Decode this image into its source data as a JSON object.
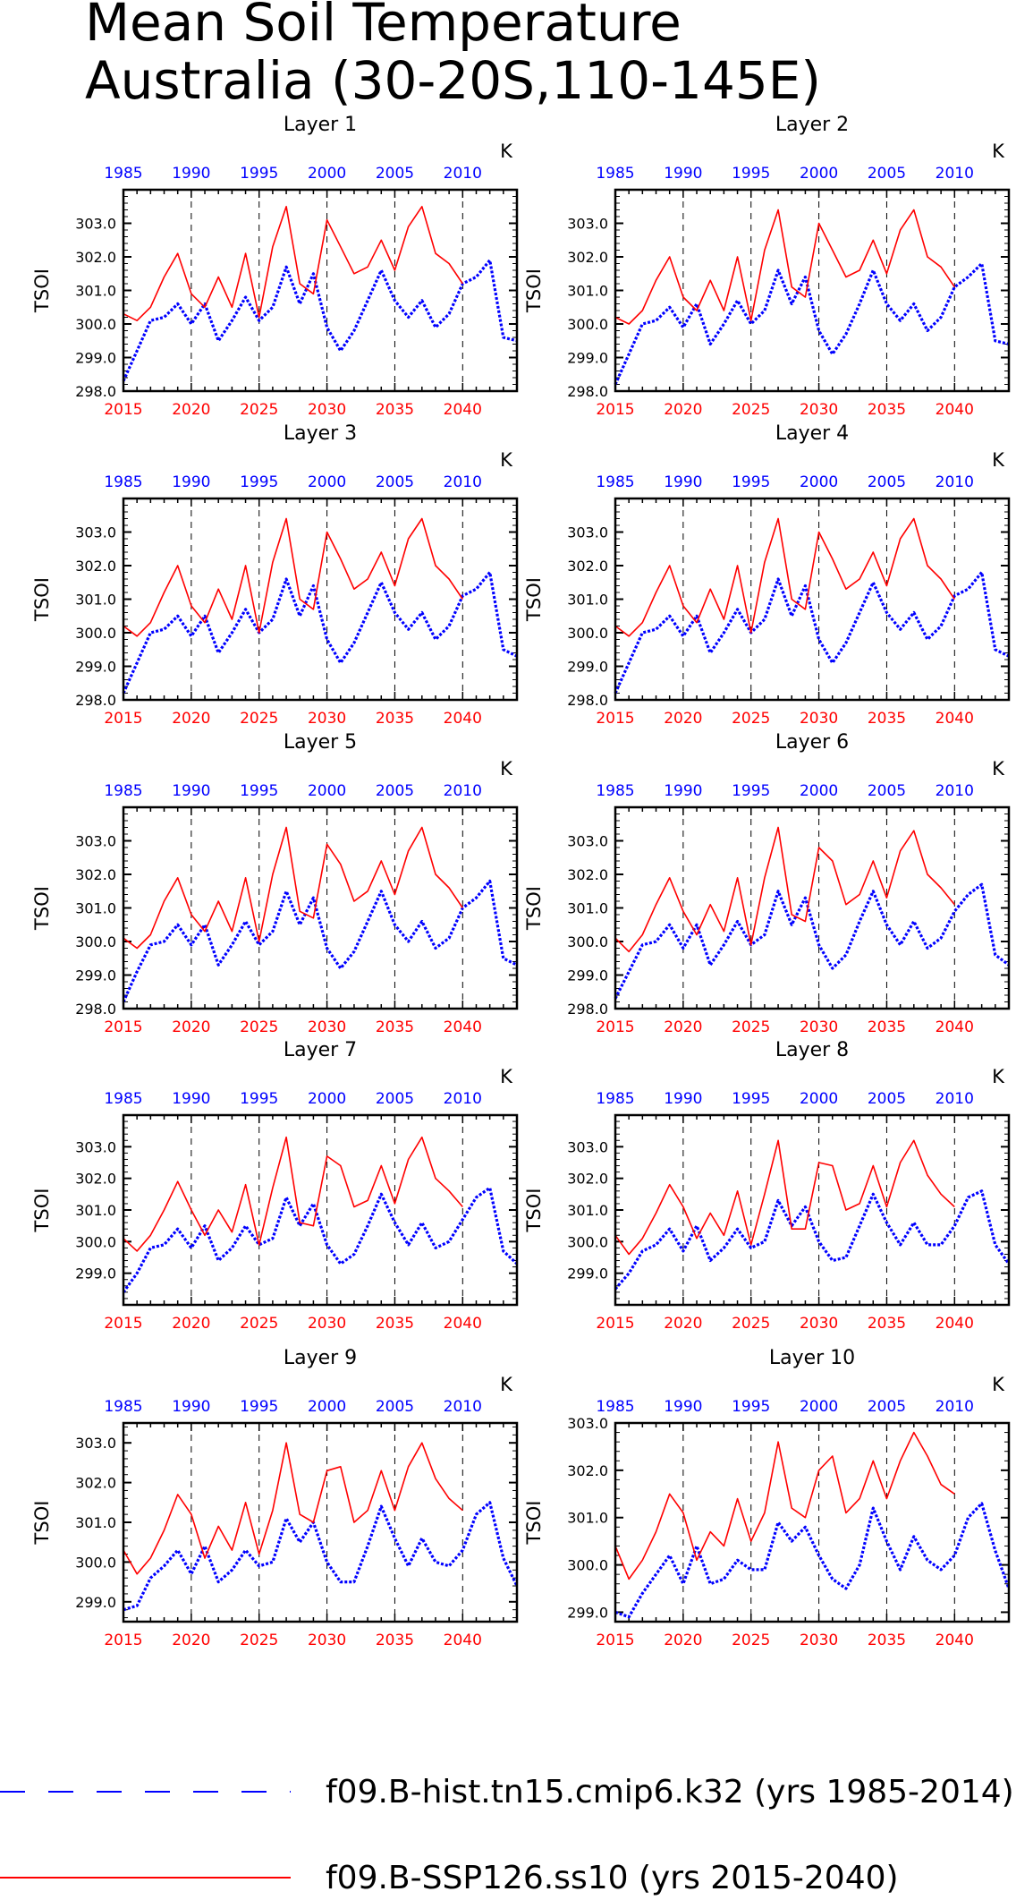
{
  "title_line1": "Mean Soil Temperature",
  "title_line2": "Australia (30-20S,110-145E)",
  "ylabel": "TSOI",
  "units": "K",
  "colors": {
    "hist": "#0000ff",
    "ssp": "#ff0000",
    "axis": "#000000",
    "grid": "#000000"
  },
  "legend": [
    {
      "label": "f09.B-hist.tn15.cmip6.k32 (yrs 1985-2014)",
      "color": "#0000ff",
      "style": "dashed"
    },
    {
      "label": "f09.B-SSP126.ss10 (yrs 2015-2040)",
      "color": "#ff0000",
      "style": "solid"
    }
  ],
  "chart_data": [
    {
      "type": "line",
      "title": "Layer 1",
      "ylabel": "TSOI",
      "units": "K",
      "ylim": [
        298.0,
        304.0
      ],
      "yticks": [
        298.0,
        299.0,
        300.0,
        301.0,
        302.0,
        303.0
      ],
      "x_bottom_ticks": [
        2015,
        2020,
        2025,
        2030,
        2035,
        2040
      ],
      "x_top_ticks": [
        1985,
        1990,
        1995,
        2000,
        2005,
        2010
      ],
      "series": [
        {
          "name": "f09.B-hist.tn15.cmip6.k32 (yrs 1985-2014)",
          "x_start": 1985,
          "values": [
            298.3,
            299.2,
            300.1,
            300.2,
            300.6,
            300.0,
            300.6,
            299.5,
            300.1,
            300.8,
            300.1,
            300.5,
            301.7,
            300.6,
            301.5,
            299.9,
            299.2,
            299.8,
            300.7,
            301.6,
            300.7,
            300.2,
            300.7,
            299.9,
            300.3,
            301.2,
            301.4,
            301.9,
            299.6,
            299.5
          ]
        },
        {
          "name": "f09.B-SSP126.ss10 (yrs 2015-2040)",
          "x_start": 2015,
          "values": [
            300.3,
            300.1,
            300.5,
            301.4,
            302.1,
            300.9,
            300.5,
            301.4,
            300.5,
            302.1,
            300.2,
            302.3,
            303.5,
            301.2,
            300.9,
            303.1,
            302.3,
            301.5,
            301.7,
            302.5,
            301.6,
            302.9,
            303.5,
            302.1,
            301.8,
            301.2
          ]
        }
      ]
    },
    {
      "type": "line",
      "title": "Layer 2",
      "ylabel": "TSOI",
      "units": "K",
      "ylim": [
        298.0,
        304.0
      ],
      "yticks": [
        298.0,
        299.0,
        300.0,
        301.0,
        302.0,
        303.0
      ],
      "x_bottom_ticks": [
        2015,
        2020,
        2025,
        2030,
        2035,
        2040
      ],
      "x_top_ticks": [
        1985,
        1990,
        1995,
        2000,
        2005,
        2010
      ],
      "series": [
        {
          "name": "f09.B-hist.tn15.cmip6.k32 (yrs 1985-2014)",
          "x_start": 1985,
          "values": [
            298.2,
            299.1,
            300.0,
            300.1,
            300.5,
            299.9,
            300.6,
            299.4,
            300.0,
            300.7,
            300.0,
            300.4,
            301.6,
            300.6,
            301.4,
            299.8,
            299.1,
            299.7,
            300.6,
            301.6,
            300.6,
            300.1,
            300.6,
            299.8,
            300.2,
            301.1,
            301.4,
            301.8,
            299.5,
            299.4
          ]
        },
        {
          "name": "f09.B-SSP126.ss10 (yrs 2015-2040)",
          "x_start": 2015,
          "values": [
            300.2,
            300.0,
            300.4,
            301.3,
            302.0,
            300.8,
            300.4,
            301.3,
            300.4,
            302.0,
            300.1,
            302.2,
            303.4,
            301.1,
            300.8,
            303.0,
            302.2,
            301.4,
            301.6,
            302.5,
            301.5,
            302.8,
            303.4,
            302.0,
            301.7,
            301.1
          ]
        }
      ]
    },
    {
      "type": "line",
      "title": "Layer 3",
      "ylabel": "TSOI",
      "units": "K",
      "ylim": [
        298.0,
        304.0
      ],
      "yticks": [
        298.0,
        299.0,
        300.0,
        301.0,
        302.0,
        303.0
      ],
      "x_bottom_ticks": [
        2015,
        2020,
        2025,
        2030,
        2035,
        2040
      ],
      "x_top_ticks": [
        1985,
        1990,
        1995,
        2000,
        2005,
        2010
      ],
      "series": [
        {
          "name": "f09.B-hist.tn15.cmip6.k32 (yrs 1985-2014)",
          "x_start": 1985,
          "values": [
            298.2,
            299.1,
            300.0,
            300.1,
            300.5,
            299.9,
            300.5,
            299.4,
            300.0,
            300.7,
            300.0,
            300.4,
            301.6,
            300.5,
            301.4,
            299.8,
            299.1,
            299.7,
            300.6,
            301.5,
            300.6,
            300.1,
            300.6,
            299.8,
            300.2,
            301.1,
            301.3,
            301.8,
            299.5,
            299.3
          ]
        },
        {
          "name": "f09.B-SSP126.ss10 (yrs 2015-2040)",
          "x_start": 2015,
          "values": [
            300.2,
            299.9,
            300.3,
            301.2,
            302.0,
            300.8,
            300.3,
            301.3,
            300.4,
            302.0,
            300.0,
            302.1,
            303.4,
            301.0,
            300.7,
            303.0,
            302.2,
            301.3,
            301.6,
            302.4,
            301.4,
            302.8,
            303.4,
            302.0,
            301.6,
            301.0
          ]
        }
      ]
    },
    {
      "type": "line",
      "title": "Layer 4",
      "ylabel": "TSOI",
      "units": "K",
      "ylim": [
        298.0,
        304.0
      ],
      "yticks": [
        298.0,
        299.0,
        300.0,
        301.0,
        302.0,
        303.0
      ],
      "x_bottom_ticks": [
        2015,
        2020,
        2025,
        2030,
        2035,
        2040
      ],
      "x_top_ticks": [
        1985,
        1990,
        1995,
        2000,
        2005,
        2010
      ],
      "series": [
        {
          "name": "f09.B-hist.tn15.cmip6.k32 (yrs 1985-2014)",
          "x_start": 1985,
          "values": [
            298.2,
            299.1,
            300.0,
            300.1,
            300.5,
            299.9,
            300.5,
            299.4,
            300.0,
            300.7,
            300.0,
            300.4,
            301.6,
            300.5,
            301.4,
            299.8,
            299.1,
            299.7,
            300.6,
            301.5,
            300.6,
            300.1,
            300.6,
            299.8,
            300.2,
            301.1,
            301.3,
            301.8,
            299.5,
            299.3
          ]
        },
        {
          "name": "f09.B-SSP126.ss10 (yrs 2015-2040)",
          "x_start": 2015,
          "values": [
            300.2,
            299.9,
            300.3,
            301.2,
            302.0,
            300.8,
            300.3,
            301.3,
            300.4,
            302.0,
            300.0,
            302.1,
            303.4,
            301.0,
            300.7,
            303.0,
            302.2,
            301.3,
            301.6,
            302.4,
            301.4,
            302.8,
            303.4,
            302.0,
            301.6,
            301.0
          ]
        }
      ]
    },
    {
      "type": "line",
      "title": "Layer 5",
      "ylabel": "TSOI",
      "units": "K",
      "ylim": [
        298.0,
        304.0
      ],
      "yticks": [
        298.0,
        299.0,
        300.0,
        301.0,
        302.0,
        303.0
      ],
      "x_bottom_ticks": [
        2015,
        2020,
        2025,
        2030,
        2035,
        2040
      ],
      "x_top_ticks": [
        1985,
        1990,
        1995,
        2000,
        2005,
        2010
      ],
      "series": [
        {
          "name": "f09.B-hist.tn15.cmip6.k32 (yrs 1985-2014)",
          "x_start": 1985,
          "values": [
            298.2,
            299.1,
            299.9,
            300.0,
            300.5,
            299.9,
            300.5,
            299.3,
            299.9,
            300.6,
            299.9,
            300.3,
            301.5,
            300.5,
            301.3,
            299.8,
            299.2,
            299.7,
            300.6,
            301.5,
            300.5,
            300.0,
            300.6,
            299.8,
            300.1,
            301.0,
            301.3,
            301.8,
            299.5,
            299.3
          ]
        },
        {
          "name": "f09.B-SSP126.ss10 (yrs 2015-2040)",
          "x_start": 2015,
          "values": [
            300.1,
            299.8,
            300.2,
            301.2,
            301.9,
            300.8,
            300.3,
            301.2,
            300.3,
            301.9,
            300.0,
            302.0,
            303.4,
            300.9,
            300.7,
            302.9,
            302.3,
            301.2,
            301.5,
            302.4,
            301.4,
            302.7,
            303.4,
            302.0,
            301.6,
            301.0
          ]
        }
      ]
    },
    {
      "type": "line",
      "title": "Layer 6",
      "ylabel": "TSOI",
      "units": "K",
      "ylim": [
        298.0,
        304.0
      ],
      "yticks": [
        298.0,
        299.0,
        300.0,
        301.0,
        302.0,
        303.0
      ],
      "x_bottom_ticks": [
        2015,
        2020,
        2025,
        2030,
        2035,
        2040
      ],
      "x_top_ticks": [
        1985,
        1990,
        1995,
        2000,
        2005,
        2010
      ],
      "series": [
        {
          "name": "f09.B-hist.tn15.cmip6.k32 (yrs 1985-2014)",
          "x_start": 1985,
          "values": [
            298.3,
            299.1,
            299.9,
            300.0,
            300.5,
            299.8,
            300.5,
            299.3,
            299.9,
            300.6,
            299.9,
            300.2,
            301.5,
            300.5,
            301.3,
            299.9,
            299.2,
            299.6,
            300.6,
            301.5,
            300.5,
            299.9,
            300.6,
            299.8,
            300.1,
            300.9,
            301.4,
            301.7,
            299.6,
            299.3
          ]
        },
        {
          "name": "f09.B-SSP126.ss10 (yrs 2015-2040)",
          "x_start": 2015,
          "values": [
            300.1,
            299.7,
            300.2,
            301.1,
            301.9,
            300.9,
            300.2,
            301.1,
            300.3,
            301.9,
            299.9,
            301.9,
            303.4,
            300.8,
            300.6,
            302.8,
            302.4,
            301.1,
            301.4,
            302.4,
            301.3,
            302.7,
            303.3,
            302.0,
            301.6,
            301.1
          ]
        }
      ]
    },
    {
      "type": "line",
      "title": "Layer 7",
      "ylabel": "TSOI",
      "units": "K",
      "ylim": [
        298.0,
        304.0
      ],
      "yticks": [
        299.0,
        300.0,
        301.0,
        302.0,
        303.0
      ],
      "x_bottom_ticks": [
        2015,
        2020,
        2025,
        2030,
        2035,
        2040
      ],
      "x_top_ticks": [
        1985,
        1990,
        1995,
        2000,
        2005,
        2010
      ],
      "series": [
        {
          "name": "f09.B-hist.tn15.cmip6.k32 (yrs 1985-2014)",
          "x_start": 1985,
          "values": [
            298.4,
            299.0,
            299.8,
            299.9,
            300.4,
            299.8,
            300.5,
            299.4,
            299.8,
            300.5,
            299.9,
            300.1,
            301.4,
            300.5,
            301.2,
            299.9,
            299.3,
            299.6,
            300.5,
            301.5,
            300.6,
            299.9,
            300.6,
            299.8,
            300.0,
            300.7,
            301.4,
            301.7,
            299.7,
            299.3
          ]
        },
        {
          "name": "f09.B-SSP126.ss10 (yrs 2015-2040)",
          "x_start": 2015,
          "values": [
            300.1,
            299.7,
            300.2,
            301.0,
            301.9,
            301.0,
            300.2,
            301.0,
            300.3,
            301.8,
            299.9,
            301.7,
            303.3,
            300.6,
            300.5,
            302.7,
            302.4,
            301.1,
            301.3,
            302.4,
            301.2,
            302.6,
            303.3,
            302.0,
            301.6,
            301.1
          ]
        }
      ]
    },
    {
      "type": "line",
      "title": "Layer 8",
      "ylabel": "TSOI",
      "units": "K",
      "ylim": [
        298.0,
        304.0
      ],
      "yticks": [
        299.0,
        300.0,
        301.0,
        302.0,
        303.0
      ],
      "x_bottom_ticks": [
        2015,
        2020,
        2025,
        2030,
        2035,
        2040
      ],
      "x_top_ticks": [
        1985,
        1990,
        1995,
        2000,
        2005,
        2010
      ],
      "series": [
        {
          "name": "f09.B-hist.tn15.cmip6.k32 (yrs 1985-2014)",
          "x_start": 1985,
          "values": [
            298.5,
            299.0,
            299.7,
            299.9,
            300.4,
            299.7,
            300.5,
            299.4,
            299.8,
            300.4,
            299.8,
            300.0,
            301.3,
            300.5,
            301.1,
            300.0,
            299.4,
            299.5,
            300.5,
            301.5,
            300.6,
            299.9,
            300.6,
            299.9,
            299.9,
            300.5,
            301.4,
            301.6,
            299.9,
            299.3
          ]
        },
        {
          "name": "f09.B-SSP126.ss10 (yrs 2015-2040)",
          "x_start": 2015,
          "values": [
            300.2,
            299.6,
            300.1,
            300.9,
            301.8,
            301.1,
            300.1,
            300.9,
            300.2,
            301.6,
            299.9,
            301.5,
            303.2,
            300.4,
            300.4,
            302.5,
            302.4,
            301.0,
            301.2,
            302.4,
            301.1,
            302.5,
            303.2,
            302.1,
            301.5,
            301.1
          ]
        }
      ]
    },
    {
      "type": "line",
      "title": "Layer 9",
      "ylabel": "TSOI",
      "units": "K",
      "ylim": [
        298.5,
        303.5
      ],
      "yticks": [
        299.0,
        300.0,
        301.0,
        302.0,
        303.0
      ],
      "x_bottom_ticks": [
        2015,
        2020,
        2025,
        2030,
        2035,
        2040
      ],
      "x_top_ticks": [
        1985,
        1990,
        1995,
        2000,
        2005,
        2010
      ],
      "series": [
        {
          "name": "f09.B-hist.tn15.cmip6.k32 (yrs 1985-2014)",
          "x_start": 1985,
          "values": [
            298.8,
            298.9,
            299.6,
            299.9,
            300.3,
            299.7,
            300.4,
            299.5,
            299.8,
            300.3,
            299.9,
            300.0,
            301.1,
            300.5,
            301.0,
            300.0,
            299.5,
            299.5,
            300.4,
            301.4,
            300.6,
            299.9,
            300.6,
            300.0,
            299.9,
            300.3,
            301.2,
            301.5,
            300.1,
            299.4
          ]
        },
        {
          "name": "f09.B-SSP126.ss10 (yrs 2015-2040)",
          "x_start": 2015,
          "values": [
            300.3,
            299.7,
            300.1,
            300.8,
            301.7,
            301.2,
            300.1,
            300.9,
            300.3,
            301.5,
            300.2,
            301.3,
            303.0,
            301.2,
            301.0,
            302.3,
            302.4,
            301.0,
            301.3,
            302.3,
            301.3,
            302.4,
            303.0,
            302.1,
            301.6,
            301.3
          ]
        }
      ]
    },
    {
      "type": "line",
      "title": "Layer 10",
      "ylabel": "TSOI",
      "units": "K",
      "ylim": [
        298.8,
        303.0
      ],
      "yticks": [
        299.0,
        300.0,
        301.0,
        302.0,
        303.0
      ],
      "x_bottom_ticks": [
        2015,
        2020,
        2025,
        2030,
        2035,
        2040
      ],
      "x_top_ticks": [
        1985,
        1990,
        1995,
        2000,
        2005,
        2010
      ],
      "series": [
        {
          "name": "f09.B-hist.tn15.cmip6.k32 (yrs 1985-2014)",
          "x_start": 1985,
          "values": [
            299.0,
            298.9,
            299.4,
            299.8,
            300.2,
            299.6,
            300.4,
            299.6,
            299.7,
            300.1,
            299.9,
            299.9,
            300.9,
            300.5,
            300.8,
            300.2,
            299.7,
            299.5,
            300.0,
            301.2,
            300.5,
            299.9,
            300.6,
            300.1,
            299.9,
            300.2,
            301.0,
            301.3,
            300.3,
            299.5
          ]
        },
        {
          "name": "f09.B-SSP126.ss10 (yrs 2015-2040)",
          "x_start": 2015,
          "values": [
            300.4,
            299.7,
            300.1,
            300.7,
            301.5,
            301.1,
            300.1,
            300.7,
            300.4,
            301.4,
            300.5,
            301.1,
            302.6,
            301.2,
            301.0,
            302.0,
            302.3,
            301.1,
            301.4,
            302.2,
            301.4,
            302.2,
            302.8,
            302.3,
            301.7,
            301.5
          ]
        }
      ]
    }
  ]
}
